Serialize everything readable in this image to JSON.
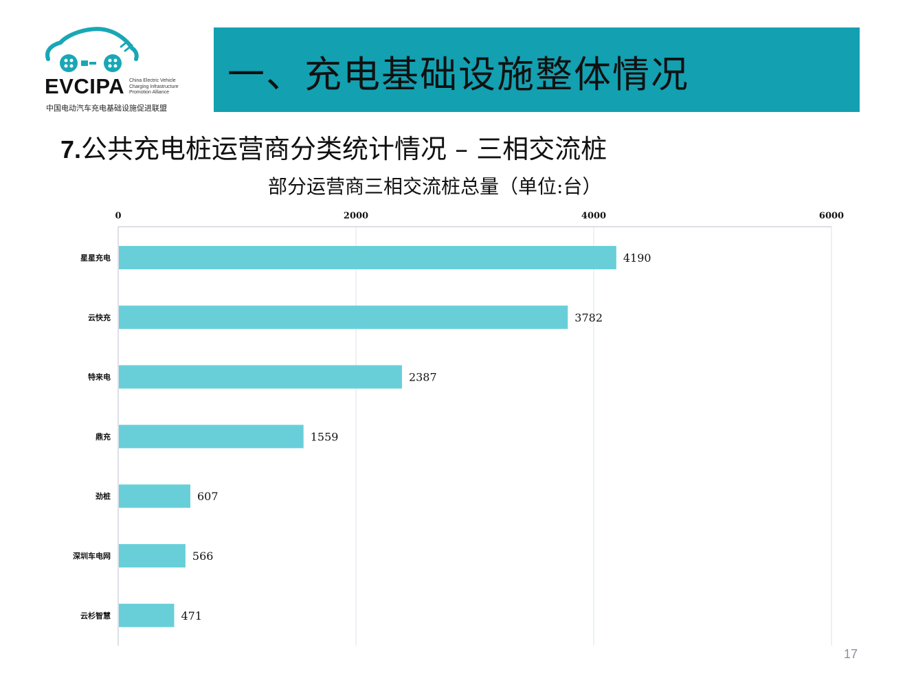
{
  "logo": {
    "wordmark": "EVCIPA",
    "english_lines": [
      "China Electric Vehicle",
      "Charging Infrastructure",
      "Promotion Alliance"
    ],
    "chinese_name": "中国电动汽车充电基础设施促进联盟",
    "color": "#19a7b5"
  },
  "banner": {
    "title": "一、充电基础设施整体情况",
    "background": "#13a0b1"
  },
  "section": {
    "number": "7.",
    "title": "公共充电桩运营商分类统计情况 – 三相交流桩"
  },
  "chart_data": {
    "type": "bar",
    "orientation": "horizontal",
    "title": "部分运营商三相交流桩总量（单位:台）",
    "categories": [
      "星星充电",
      "云快充",
      "特来电",
      "鼎充",
      "劲桩",
      "深圳车电网",
      "云杉智慧"
    ],
    "values": [
      4190,
      3782,
      2387,
      1559,
      607,
      566,
      471
    ],
    "xlim": [
      0,
      6000
    ],
    "xticks": [
      "0",
      "2000",
      "4000",
      "6000"
    ],
    "axis_position": "top",
    "grid": true,
    "bar_color": "#68cfd9",
    "data_labels": true
  },
  "page_number": "17"
}
